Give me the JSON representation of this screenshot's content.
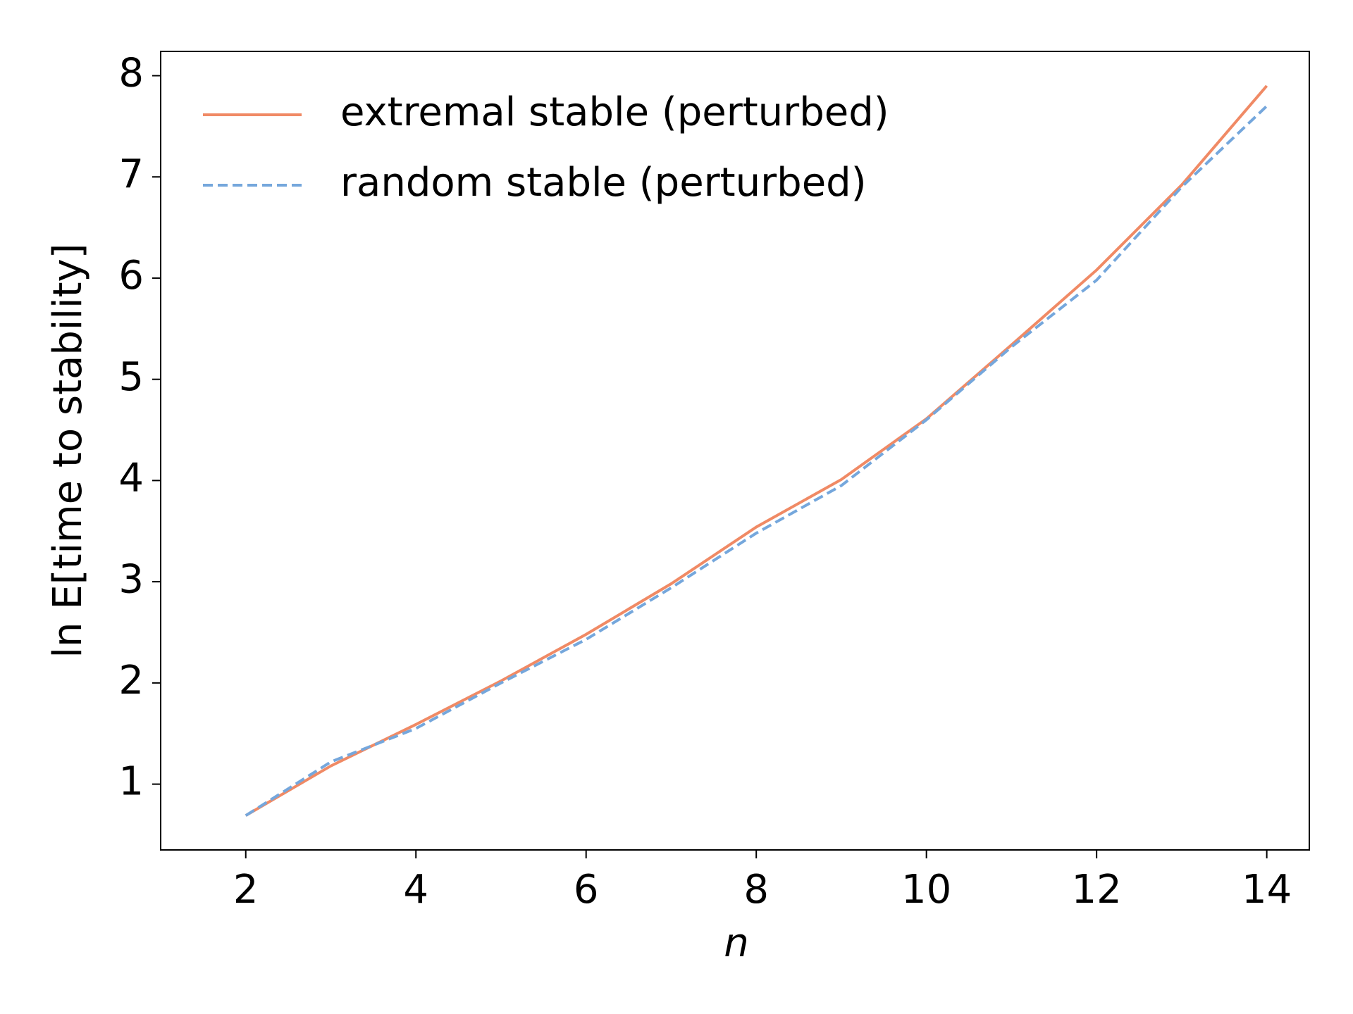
{
  "chart_data": {
    "type": "line",
    "x_label": "n",
    "y_label": "ln E[time to stability]",
    "x": [
      2,
      3,
      4,
      5,
      6,
      7,
      8,
      9,
      10,
      11,
      12,
      13,
      14
    ],
    "series": [
      {
        "name": "extremal stable (perturbed)",
        "color": "#f08a65",
        "dash": "solid",
        "values": [
          0.69,
          1.18,
          1.59,
          2.02,
          2.48,
          2.98,
          3.54,
          4.01,
          4.61,
          5.34,
          6.08,
          6.92,
          7.9
        ]
      },
      {
        "name": "random stable (perturbed)",
        "color": "#75a7dc",
        "dash": "dashed",
        "values": [
          0.69,
          1.22,
          1.55,
          2.0,
          2.43,
          2.94,
          3.48,
          3.95,
          4.6,
          5.32,
          5.98,
          6.9,
          7.7
        ]
      }
    ],
    "xlim": [
      1.0,
      14.5
    ],
    "ylim": [
      0.35,
      8.24
    ],
    "xticks": [
      2,
      4,
      6,
      8,
      10,
      12,
      14
    ],
    "yticks": [
      1,
      2,
      3,
      4,
      5,
      6,
      7,
      8
    ],
    "grid": false,
    "legend": "upper-left"
  }
}
